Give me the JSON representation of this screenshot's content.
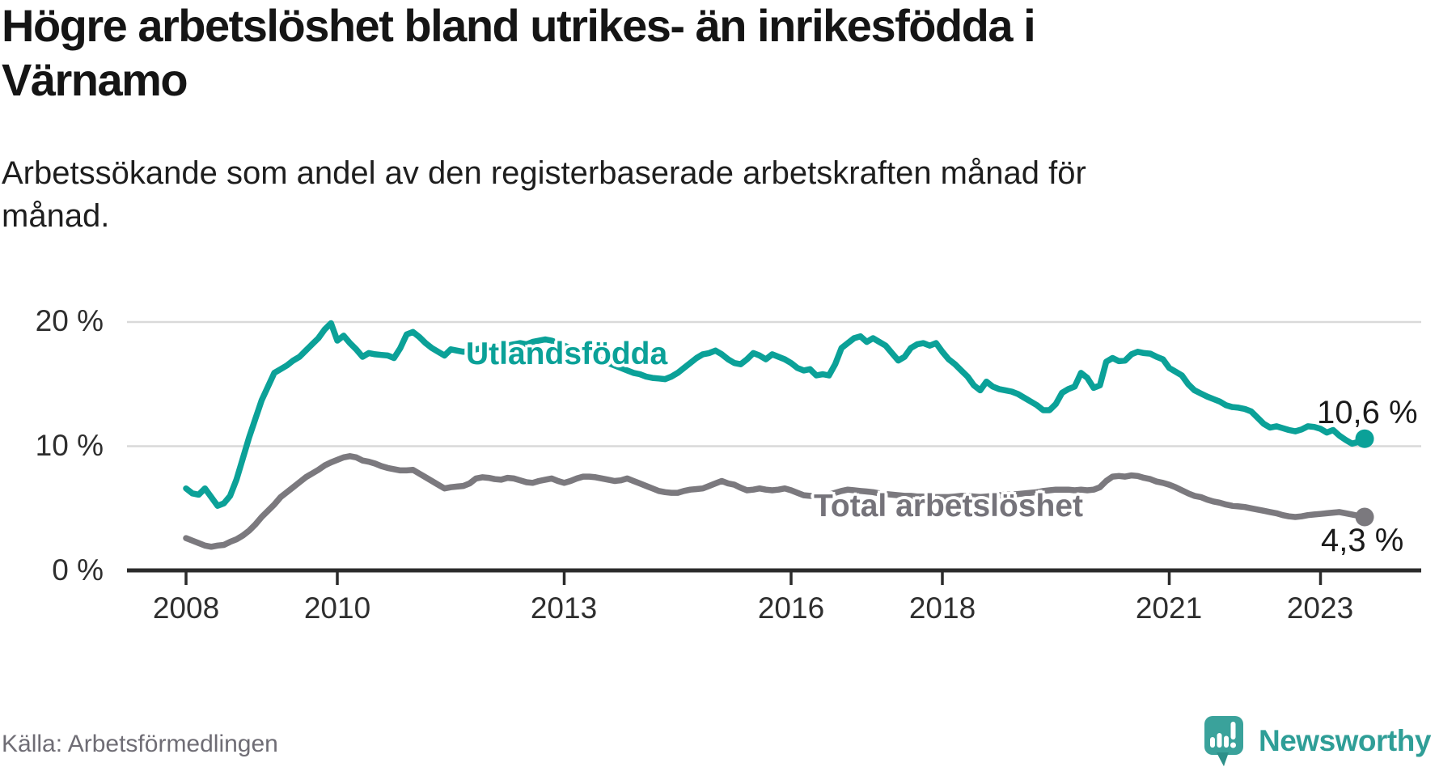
{
  "title": {
    "line1": "Högre arbetslöshet bland utrikes- än inrikesfödda i",
    "line2": "Värnamo"
  },
  "subtitle": "Arbetssökande som andel av den registerbaserade arbetskraften månad för månad.",
  "source": "Källa: Arbetsförmedlingen",
  "logo": {
    "text": "Newsworthy",
    "icon": "newsworthy-speech-bubble-bar-chart",
    "color": "#3aa29b"
  },
  "chart_data": {
    "type": "line",
    "x_start": {
      "year": 2008,
      "month": 1
    },
    "x_end": {
      "year": 2023,
      "month": 8
    },
    "x_unit": "month",
    "ylim": [
      0,
      21.5
    ],
    "grid": "horizontal",
    "y_ticks": [
      {
        "value": 0,
        "label": "0 %"
      },
      {
        "value": 10,
        "label": "10 %"
      },
      {
        "value": 20,
        "label": "20 %"
      }
    ],
    "x_ticks": [
      {
        "year": 2008,
        "label": "2008"
      },
      {
        "year": 2010,
        "label": "2010"
      },
      {
        "year": 2013,
        "label": "2013"
      },
      {
        "year": 2016,
        "label": "2016"
      },
      {
        "year": 2018,
        "label": "2018"
      },
      {
        "year": 2021,
        "label": "2021"
      },
      {
        "year": 2023,
        "label": "2023"
      }
    ],
    "series": [
      {
        "name": "Utlandsfödda",
        "color": "#0ba198",
        "end_label": "10,6 %",
        "end_value": 10.6,
        "values": [
          6.6,
          6.2,
          6.1,
          6.6,
          5.9,
          5.2,
          5.4,
          6.0,
          7.3,
          9.0,
          10.7,
          12.2,
          13.7,
          14.8,
          15.9,
          16.2,
          16.5,
          16.9,
          17.2,
          17.7,
          18.2,
          18.7,
          19.4,
          19.9,
          18.5,
          18.9,
          18.3,
          17.8,
          17.2,
          17.5,
          17.4,
          17.35,
          17.3,
          17.1,
          17.9,
          19.0,
          19.2,
          18.8,
          18.3,
          17.9,
          17.6,
          17.3,
          17.8,
          17.7,
          17.6,
          17.7,
          17.8,
          17.9,
          18.0,
          18.1,
          18.0,
          18.1,
          18.2,
          18.3,
          18.2,
          18.4,
          18.5,
          18.6,
          18.5,
          18.3,
          18.1,
          17.9,
          17.7,
          17.5,
          17.3,
          17.1,
          16.9,
          16.7,
          16.5,
          16.3,
          16.1,
          15.9,
          15.8,
          15.6,
          15.5,
          15.45,
          15.4,
          15.6,
          15.9,
          16.3,
          16.7,
          17.1,
          17.4,
          17.5,
          17.7,
          17.4,
          17.0,
          16.7,
          16.6,
          17.0,
          17.5,
          17.3,
          17.0,
          17.4,
          17.2,
          17.0,
          16.7,
          16.3,
          16.1,
          16.2,
          15.7,
          15.8,
          15.7,
          16.6,
          17.9,
          18.3,
          18.7,
          18.85,
          18.4,
          18.7,
          18.4,
          18.1,
          17.5,
          16.9,
          17.2,
          17.9,
          18.2,
          18.3,
          18.1,
          18.3,
          17.6,
          17.0,
          16.6,
          16.1,
          15.6,
          14.9,
          14.5,
          15.2,
          14.8,
          14.6,
          14.5,
          14.4,
          14.2,
          13.9,
          13.6,
          13.3,
          12.9,
          12.9,
          13.4,
          14.3,
          14.6,
          14.8,
          15.9,
          15.5,
          14.7,
          14.9,
          16.8,
          17.1,
          16.85,
          16.9,
          17.4,
          17.6,
          17.5,
          17.45,
          17.2,
          17.0,
          16.3,
          16.0,
          15.7,
          15.0,
          14.5,
          14.25,
          14.0,
          13.8,
          13.6,
          13.3,
          13.15,
          13.1,
          13.0,
          12.8,
          12.3,
          11.8,
          11.5,
          11.6,
          11.45,
          11.3,
          11.2,
          11.35,
          11.6,
          11.55,
          11.4,
          11.1,
          11.3,
          10.85,
          10.5,
          10.2,
          10.35,
          10.6
        ]
      },
      {
        "name": "Total arbetslöshet",
        "color": "#7b797e",
        "end_label": "4,3 %",
        "end_value": 4.3,
        "values": [
          2.6,
          2.4,
          2.2,
          2.0,
          1.9,
          2.0,
          2.05,
          2.3,
          2.5,
          2.8,
          3.2,
          3.7,
          4.3,
          4.8,
          5.3,
          5.9,
          6.3,
          6.7,
          7.1,
          7.5,
          7.8,
          8.1,
          8.45,
          8.7,
          8.9,
          9.1,
          9.2,
          9.1,
          8.85,
          8.75,
          8.6,
          8.4,
          8.25,
          8.15,
          8.05,
          8.05,
          8.1,
          7.8,
          7.5,
          7.2,
          6.9,
          6.6,
          6.7,
          6.75,
          6.8,
          7.0,
          7.4,
          7.5,
          7.45,
          7.35,
          7.3,
          7.45,
          7.4,
          7.25,
          7.1,
          7.05,
          7.2,
          7.3,
          7.4,
          7.2,
          7.05,
          7.2,
          7.4,
          7.55,
          7.55,
          7.5,
          7.4,
          7.3,
          7.2,
          7.25,
          7.4,
          7.2,
          7.0,
          6.8,
          6.6,
          6.4,
          6.3,
          6.25,
          6.25,
          6.4,
          6.5,
          6.55,
          6.6,
          6.8,
          7.0,
          7.2,
          7.0,
          6.9,
          6.65,
          6.45,
          6.5,
          6.6,
          6.5,
          6.45,
          6.5,
          6.6,
          6.45,
          6.25,
          6.05,
          6.0,
          6.0,
          6.05,
          6.1,
          6.25,
          6.4,
          6.5,
          6.45,
          6.4,
          6.35,
          6.3,
          6.2,
          6.15,
          6.1,
          6.05,
          6.0,
          6.0,
          5.95,
          5.95,
          5.9,
          5.9,
          5.9,
          5.9,
          5.95,
          6.0,
          6.0,
          5.95,
          5.9,
          5.95,
          6.0,
          6.05,
          6.1,
          6.1,
          6.15,
          6.2,
          6.25,
          6.3,
          6.4,
          6.45,
          6.5,
          6.5,
          6.5,
          6.45,
          6.5,
          6.45,
          6.5,
          6.7,
          7.2,
          7.55,
          7.6,
          7.55,
          7.65,
          7.6,
          7.45,
          7.35,
          7.15,
          7.05,
          6.9,
          6.7,
          6.45,
          6.2,
          6.0,
          5.9,
          5.7,
          5.55,
          5.45,
          5.3,
          5.2,
          5.15,
          5.1,
          5.0,
          4.9,
          4.8,
          4.7,
          4.6,
          4.45,
          4.35,
          4.3,
          4.35,
          4.45,
          4.5,
          4.55,
          4.6,
          4.65,
          4.7,
          4.6,
          4.5,
          4.4,
          4.3
        ]
      }
    ]
  }
}
